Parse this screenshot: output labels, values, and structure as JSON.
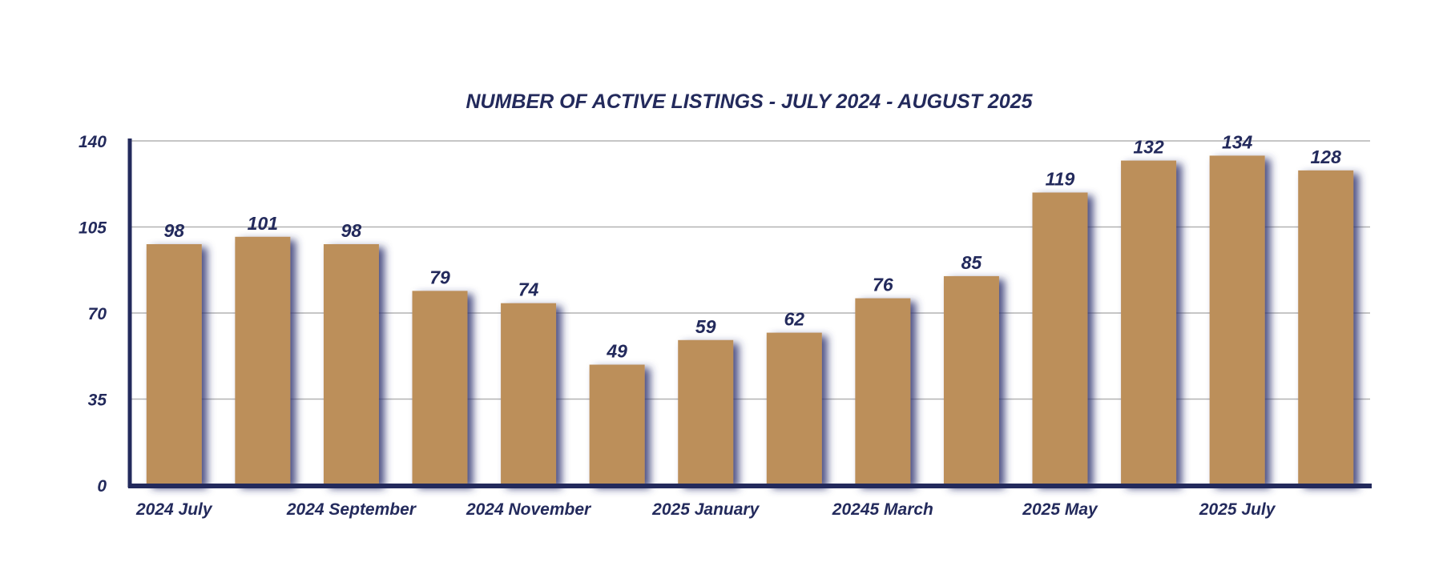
{
  "chart_data": {
    "type": "bar",
    "title": "NUMBER OF ACTIVE LISTINGS - JULY 2024 - AUGUST 2025",
    "xlabel": "",
    "ylabel": "",
    "categories": [
      "2024 July",
      "",
      "2024 September",
      "",
      "2024 November",
      "",
      "2025 January",
      "",
      "20245 March",
      "",
      "2025 May",
      "",
      "2025 July",
      ""
    ],
    "values": [
      98,
      101,
      98,
      79,
      74,
      49,
      59,
      62,
      76,
      85,
      119,
      132,
      134,
      128
    ],
    "ylim": [
      0,
      140
    ],
    "yticks": [
      "0",
      "35",
      "70",
      "105",
      "140"
    ],
    "grid": true,
    "data_labels": true,
    "legend": "none",
    "colors": {
      "bar": "#bc8f5a",
      "bar_shadow": "#2e3370",
      "axis": "#232a5c",
      "grid": "#b3b3b3",
      "text": "#232a5c"
    }
  }
}
